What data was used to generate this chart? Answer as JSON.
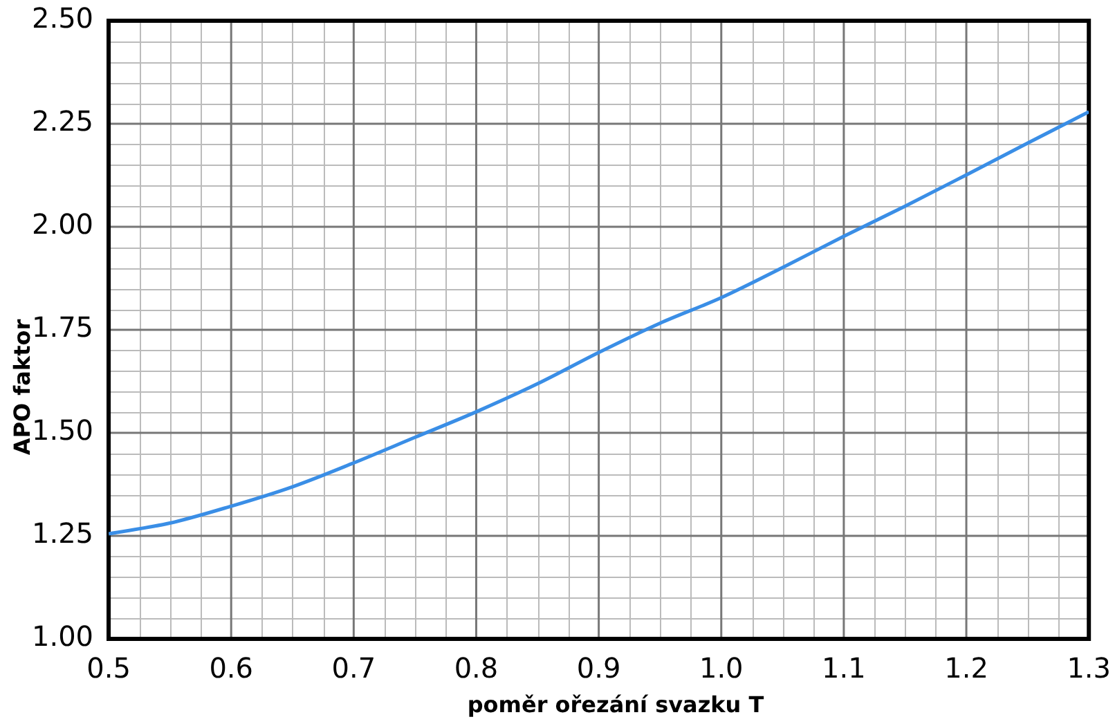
{
  "chart_data": {
    "type": "line",
    "xlabel": "poměr ořezání svazku T",
    "ylabel": "APO faktor",
    "x": [
      0.5,
      0.55,
      0.6,
      0.65,
      0.7,
      0.75,
      0.8,
      0.85,
      0.9,
      0.95,
      1.0,
      1.05,
      1.1,
      1.15,
      1.2,
      1.25,
      1.3
    ],
    "series": [
      {
        "color": "#3a8ee6",
        "values": [
          1.255,
          1.281,
          1.322,
          1.369,
          1.427,
          1.489,
          1.551,
          1.619,
          1.695,
          1.766,
          1.828,
          1.901,
          1.977,
          2.05,
          2.126,
          2.203,
          2.279
        ]
      }
    ],
    "xlim": [
      0.5,
      1.3
    ],
    "xticks": [
      {
        "value": 0.5,
        "label": "0.5"
      },
      {
        "value": 0.6,
        "label": "0.6"
      },
      {
        "value": 0.7,
        "label": "0.7"
      },
      {
        "value": 0.8,
        "label": "0.8"
      },
      {
        "value": 0.9,
        "label": "0.9"
      },
      {
        "value": 1.0,
        "label": "1.0"
      },
      {
        "value": 1.1,
        "label": "1.1"
      },
      {
        "value": 1.2,
        "label": "1.2"
      },
      {
        "value": 1.3,
        "label": "1.3"
      }
    ],
    "ylim": [
      1.0,
      2.5
    ],
    "yticks": [
      {
        "value": 1.0,
        "label": "1.00"
      },
      {
        "value": 1.25,
        "label": "1.25"
      },
      {
        "value": 1.5,
        "label": "1.50"
      },
      {
        "value": 1.75,
        "label": "1.75"
      },
      {
        "value": 2.0,
        "label": "2.00"
      },
      {
        "value": 2.25,
        "label": "2.25"
      },
      {
        "value": 2.5,
        "label": "2.50"
      }
    ],
    "grid": true,
    "legend": false,
    "marker": "none",
    "line_style": "solid"
  }
}
